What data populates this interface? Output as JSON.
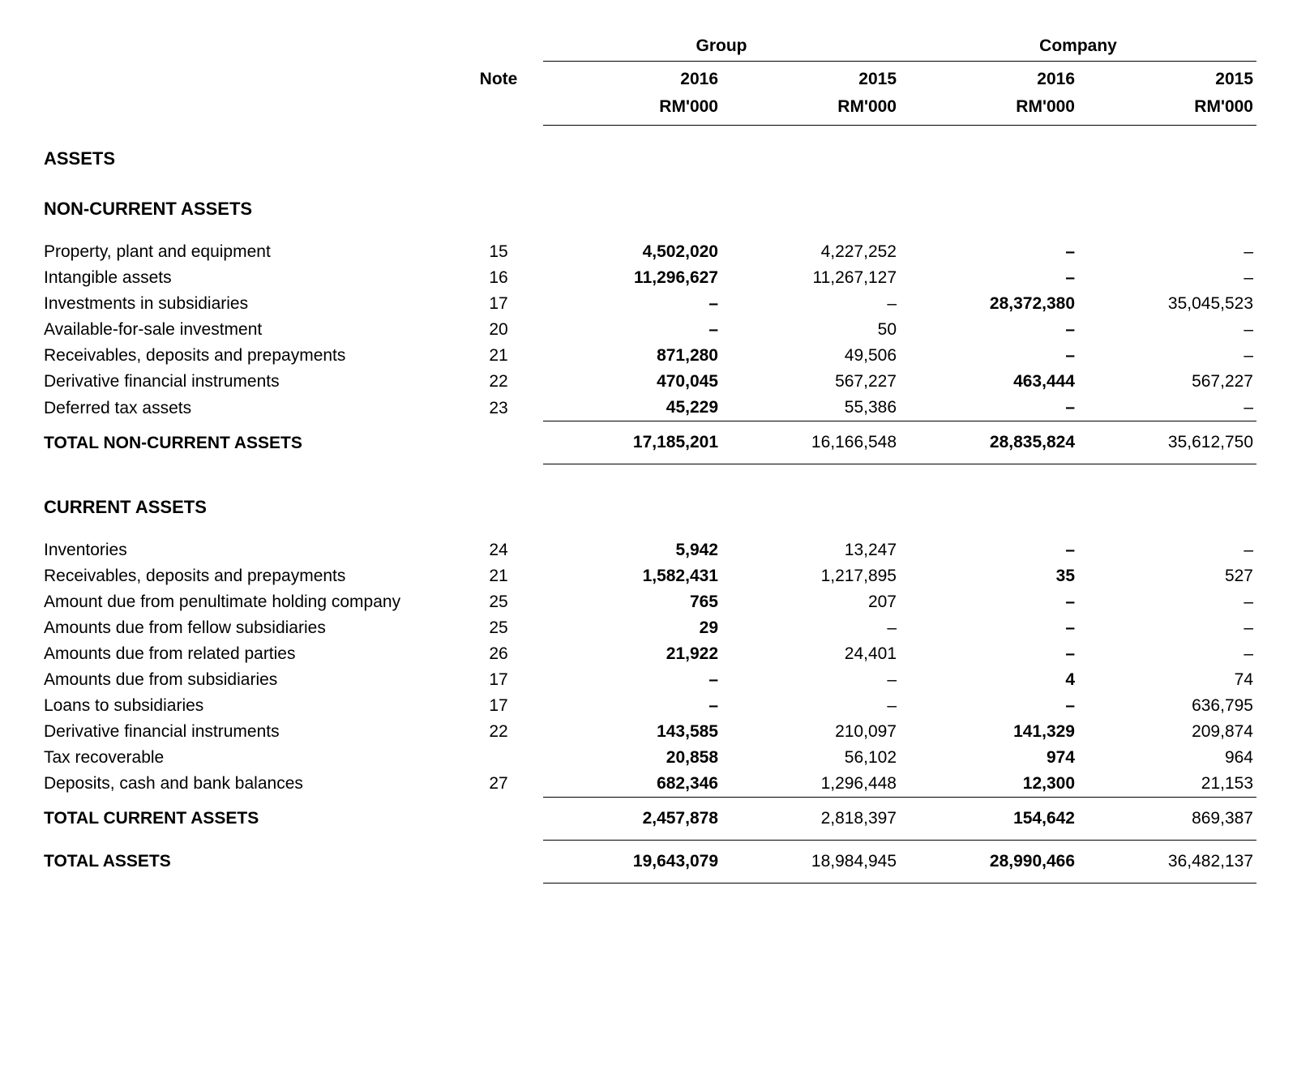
{
  "headers": {
    "note": "Note",
    "group": "Group",
    "company": "Company",
    "y2016": "2016",
    "y2015": "2015",
    "unit": "RM'000"
  },
  "sections": {
    "assets": "ASSETS",
    "nca": "NON-CURRENT ASSETS",
    "ca": "CURRENT ASSETS",
    "total_nca": "TOTAL NON-CURRENT ASSETS",
    "total_ca": "TOTAL CURRENT ASSETS",
    "total_assets": "TOTAL ASSETS"
  },
  "nca_rows": [
    {
      "label": "Property, plant and equipment",
      "note": "15",
      "g16": "4,502,020",
      "g15": "4,227,252",
      "c16": "–",
      "c15": "–"
    },
    {
      "label": "Intangible assets",
      "note": "16",
      "g16": "11,296,627",
      "g15": "11,267,127",
      "c16": "–",
      "c15": "–"
    },
    {
      "label": "Investments in subsidiaries",
      "note": "17",
      "g16": "–",
      "g15": "–",
      "c16": "28,372,380",
      "c15": "35,045,523"
    },
    {
      "label": "Available-for-sale investment",
      "note": "20",
      "g16": "–",
      "g15": "50",
      "c16": "–",
      "c15": "–"
    },
    {
      "label": "Receivables, deposits and prepayments",
      "note": "21",
      "g16": "871,280",
      "g15": "49,506",
      "c16": "–",
      "c15": "–"
    },
    {
      "label": "Derivative financial instruments",
      "note": "22",
      "g16": "470,045",
      "g15": "567,227",
      "c16": "463,444",
      "c15": "567,227"
    },
    {
      "label": "Deferred tax assets",
      "note": "23",
      "g16": "45,229",
      "g15": "55,386",
      "c16": "–",
      "c15": "–"
    }
  ],
  "nca_total": {
    "g16": "17,185,201",
    "g15": "16,166,548",
    "c16": "28,835,824",
    "c15": "35,612,750"
  },
  "ca_rows": [
    {
      "label": "Inventories",
      "note": "24",
      "g16": "5,942",
      "g15": "13,247",
      "c16": "–",
      "c15": "–"
    },
    {
      "label": "Receivables, deposits and prepayments",
      "note": "21",
      "g16": "1,582,431",
      "g15": "1,217,895",
      "c16": "35",
      "c15": "527"
    },
    {
      "label": "Amount due from penultimate holding company",
      "note": "25",
      "g16": "765",
      "g15": "207",
      "c16": "–",
      "c15": "–"
    },
    {
      "label": "Amounts due from fellow subsidiaries",
      "note": "25",
      "g16": "29",
      "g15": "–",
      "c16": "–",
      "c15": "–"
    },
    {
      "label": "Amounts due from related parties",
      "note": "26",
      "g16": "21,922",
      "g15": "24,401",
      "c16": "–",
      "c15": "–"
    },
    {
      "label": "Amounts due from subsidiaries",
      "note": "17",
      "g16": "–",
      "g15": "–",
      "c16": "4",
      "c15": "74"
    },
    {
      "label": "Loans to subsidiaries",
      "note": "17",
      "g16": "–",
      "g15": "–",
      "c16": "–",
      "c15": "636,795"
    },
    {
      "label": "Derivative financial instruments",
      "note": "22",
      "g16": "143,585",
      "g15": "210,097",
      "c16": "141,329",
      "c15": "209,874"
    },
    {
      "label": "Tax recoverable",
      "note": "",
      "g16": "20,858",
      "g15": "56,102",
      "c16": "974",
      "c15": "964"
    },
    {
      "label": "Deposits, cash and bank balances",
      "note": "27",
      "g16": "682,346",
      "g15": "1,296,448",
      "c16": "12,300",
      "c15": "21,153"
    }
  ],
  "ca_total": {
    "g16": "2,457,878",
    "g15": "2,818,397",
    "c16": "154,642",
    "c15": "869,387"
  },
  "grand_total": {
    "g16": "19,643,079",
    "g15": "18,984,945",
    "c16": "28,990,466",
    "c15": "36,482,137"
  }
}
